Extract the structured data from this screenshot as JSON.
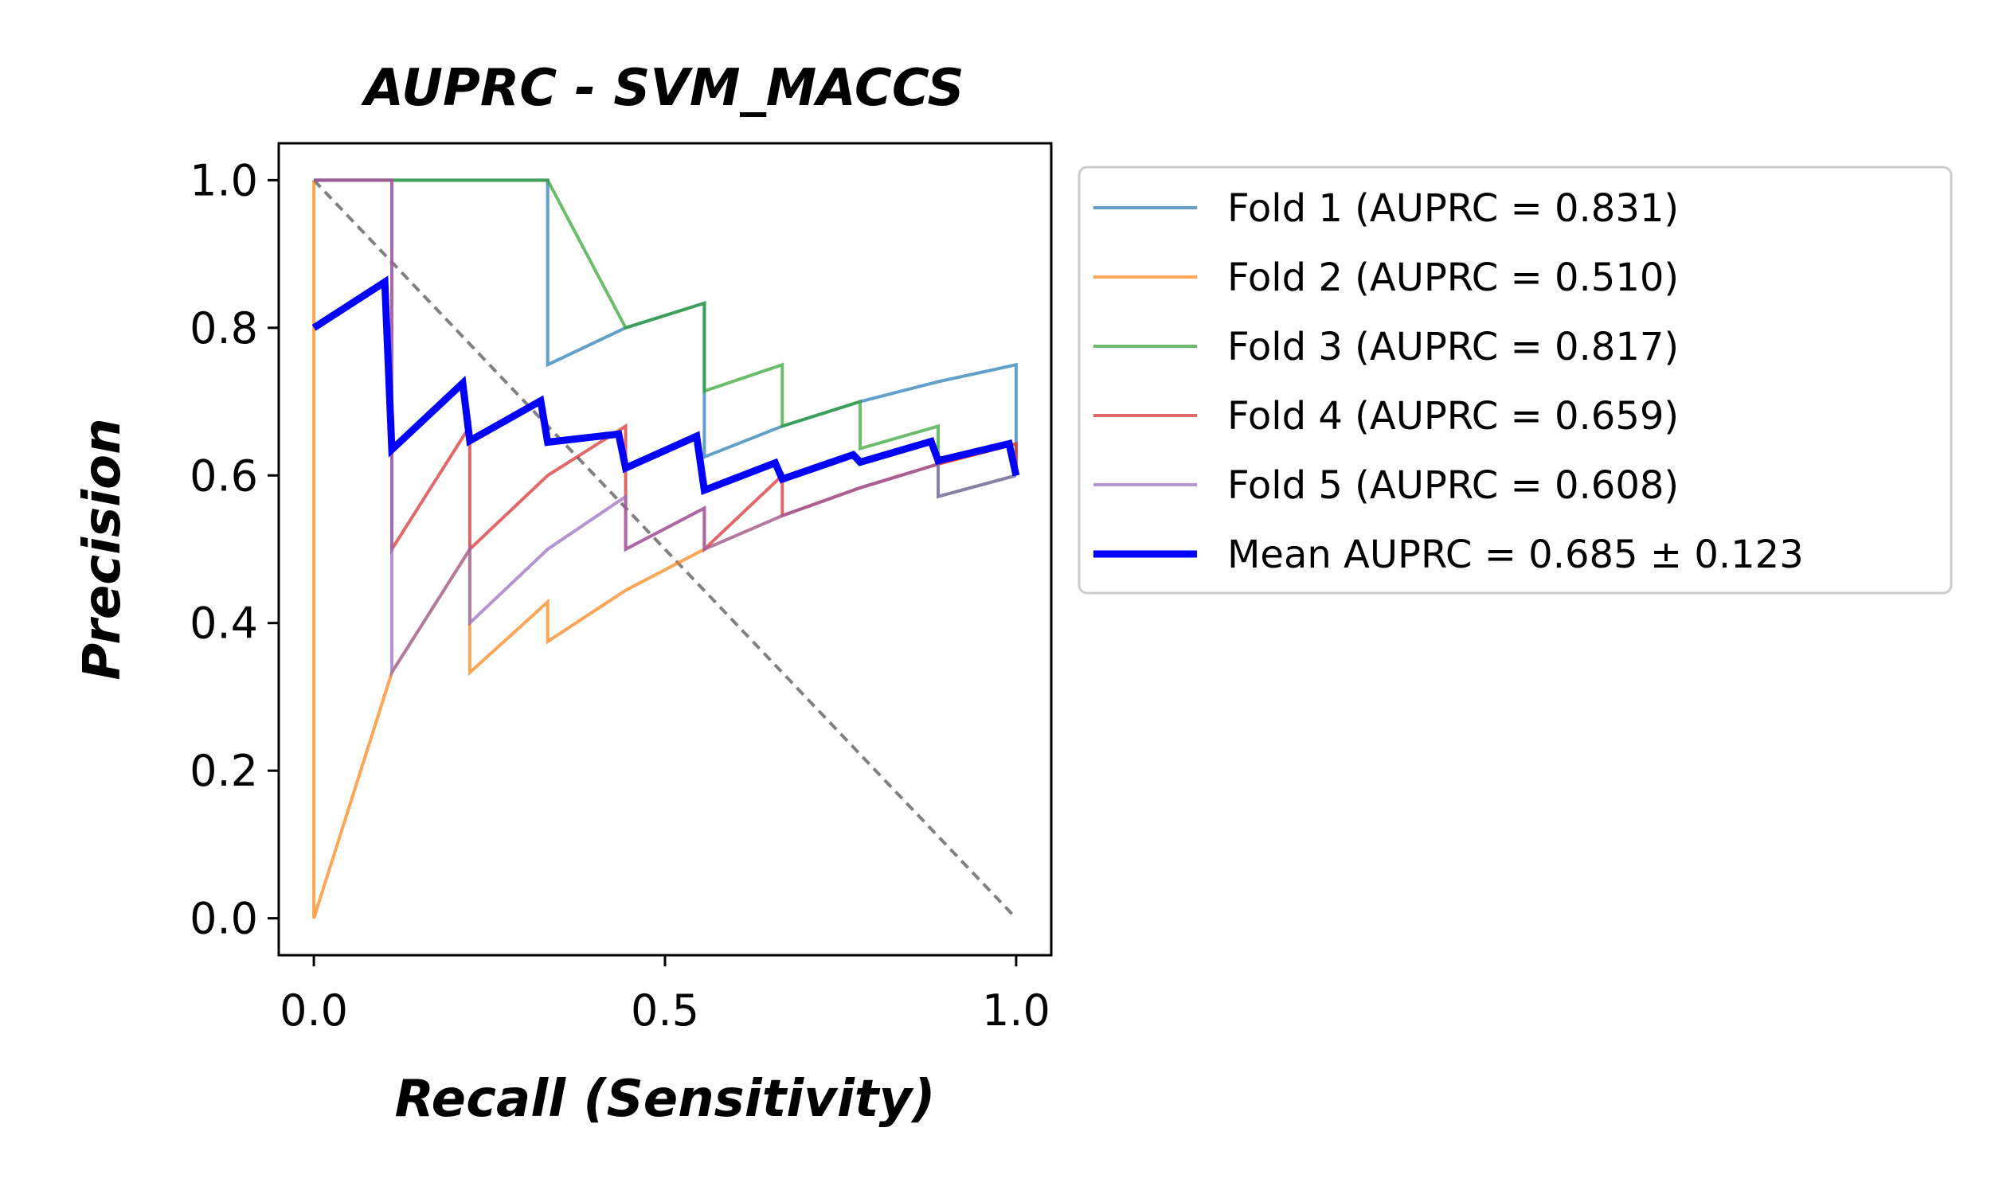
{
  "chart_data": {
    "type": "line",
    "title": "AUPRC - SVM_MACCS",
    "xlabel": "Recall (Sensitivity)",
    "ylabel": "Precision",
    "xlim": [
      -0.05,
      1.05
    ],
    "ylim": [
      -0.05,
      1.05
    ],
    "xticks": [
      {
        "value": 0.0,
        "label": "0.0"
      },
      {
        "value": 0.5,
        "label": "0.5"
      },
      {
        "value": 1.0,
        "label": "1.0"
      }
    ],
    "yticks": [
      {
        "value": 0.0,
        "label": "0.0"
      },
      {
        "value": 0.2,
        "label": "0.2"
      },
      {
        "value": 0.4,
        "label": "0.4"
      },
      {
        "value": 0.6,
        "label": "0.6"
      },
      {
        "value": 0.8,
        "label": "0.8"
      },
      {
        "value": 1.0,
        "label": "1.0"
      }
    ],
    "legend_position": "outside-right",
    "grid": false,
    "baseline": {
      "style": "dashed",
      "color": "#808080",
      "points": [
        [
          0,
          1
        ],
        [
          1,
          0
        ]
      ]
    },
    "series": [
      {
        "name": "Fold 1 (AUPRC = 0.831)",
        "color": "#1f77b4",
        "opacity": 0.7,
        "width": "thin",
        "points": [
          [
            0,
            1
          ],
          [
            0.111,
            1
          ],
          [
            0.222,
            1
          ],
          [
            0.333,
            1
          ],
          [
            0.333,
            0.75
          ],
          [
            0.444,
            0.8
          ],
          [
            0.556,
            0.8333
          ],
          [
            0.556,
            0.625
          ],
          [
            0.667,
            0.6667
          ],
          [
            0.778,
            0.7
          ],
          [
            0.889,
            0.727
          ],
          [
            1.0,
            0.75
          ],
          [
            1.0,
            0.6
          ]
        ]
      },
      {
        "name": "Fold 2 (AUPRC = 0.510)",
        "color": "#ff7f0e",
        "opacity": 0.7,
        "width": "thin",
        "points": [
          [
            0,
            1
          ],
          [
            0,
            0
          ],
          [
            0.111,
            0.333
          ],
          [
            0.222,
            0.5
          ],
          [
            0.222,
            0.333
          ],
          [
            0.333,
            0.4286
          ],
          [
            0.333,
            0.375
          ],
          [
            0.444,
            0.4444
          ],
          [
            0.556,
            0.5
          ],
          [
            0.667,
            0.5455
          ],
          [
            0.778,
            0.5833
          ],
          [
            0.889,
            0.6154
          ],
          [
            1.0,
            0.6429
          ]
        ]
      },
      {
        "name": "Fold 3 (AUPRC = 0.817)",
        "color": "#2ca02c",
        "opacity": 0.7,
        "width": "thin",
        "points": [
          [
            0,
            1
          ],
          [
            0.111,
            1
          ],
          [
            0.222,
            1
          ],
          [
            0.333,
            1
          ],
          [
            0.444,
            0.8
          ],
          [
            0.556,
            0.8333
          ],
          [
            0.556,
            0.7143
          ],
          [
            0.667,
            0.75
          ],
          [
            0.667,
            0.6667
          ],
          [
            0.778,
            0.7
          ],
          [
            0.778,
            0.6364
          ],
          [
            0.889,
            0.6667
          ],
          [
            0.889,
            0.5714
          ],
          [
            1.0,
            0.6
          ]
        ]
      },
      {
        "name": "Fold 4 (AUPRC = 0.659)",
        "color": "#d62728",
        "opacity": 0.7,
        "width": "thin",
        "points": [
          [
            0,
            1
          ],
          [
            0.111,
            1
          ],
          [
            0.111,
            0.5
          ],
          [
            0.222,
            0.6667
          ],
          [
            0.222,
            0.5
          ],
          [
            0.333,
            0.6
          ],
          [
            0.444,
            0.6667
          ],
          [
            0.444,
            0.5
          ],
          [
            0.556,
            0.5556
          ],
          [
            0.556,
            0.5
          ],
          [
            0.667,
            0.6
          ],
          [
            0.667,
            0.5455
          ],
          [
            0.778,
            0.5833
          ],
          [
            0.889,
            0.6154
          ],
          [
            1.0,
            0.6429
          ],
          [
            1.0,
            0.6
          ]
        ]
      },
      {
        "name": "Fold 5 (AUPRC = 0.608)",
        "color": "#9467bd",
        "opacity": 0.7,
        "width": "thin",
        "points": [
          [
            0,
            1
          ],
          [
            0.111,
            1
          ],
          [
            0.111,
            0.3333
          ],
          [
            0.222,
            0.5
          ],
          [
            0.222,
            0.4
          ],
          [
            0.333,
            0.5
          ],
          [
            0.444,
            0.5714
          ],
          [
            0.444,
            0.5
          ],
          [
            0.556,
            0.5556
          ],
          [
            0.556,
            0.5
          ],
          [
            0.667,
            0.5455
          ],
          [
            0.778,
            0.5833
          ],
          [
            0.889,
            0.6154
          ],
          [
            0.889,
            0.5714
          ],
          [
            1.0,
            0.6
          ]
        ]
      },
      {
        "name": "Mean AUPRC = 0.685 ± 0.123",
        "color": "#0000ff",
        "opacity": 1,
        "width": "thick",
        "points": [
          [
            0,
            0.8
          ],
          [
            0.101,
            0.862
          ],
          [
            0.111,
            0.635
          ],
          [
            0.212,
            0.725
          ],
          [
            0.222,
            0.647
          ],
          [
            0.323,
            0.701
          ],
          [
            0.333,
            0.645
          ],
          [
            0.434,
            0.656
          ],
          [
            0.444,
            0.61
          ],
          [
            0.545,
            0.653
          ],
          [
            0.556,
            0.58
          ],
          [
            0.657,
            0.617
          ],
          [
            0.667,
            0.595
          ],
          [
            0.768,
            0.628
          ],
          [
            0.778,
            0.618
          ],
          [
            0.879,
            0.646
          ],
          [
            0.889,
            0.62
          ],
          [
            0.99,
            0.643
          ],
          [
            1.0,
            0.6
          ]
        ]
      }
    ]
  }
}
